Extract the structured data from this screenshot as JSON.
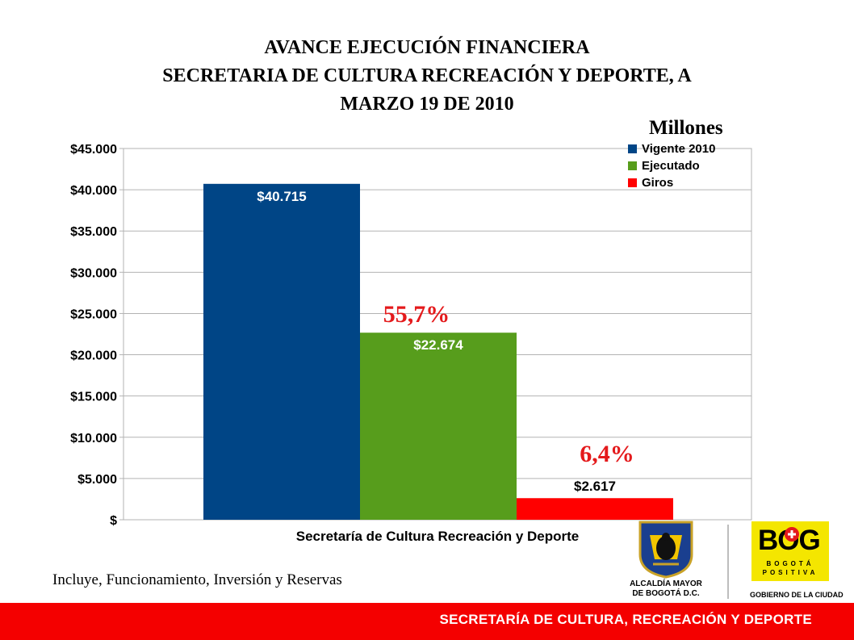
{
  "title": {
    "line1": "AVANCE EJECUCIÓN FINANCIERA",
    "line2": "SECRETARIA DE CULTURA RECREACIÓN Y DEPORTE,  A",
    "line3": "MARZO 19 DE 2010"
  },
  "unit_label": "Millones",
  "footnote": "Incluye, Funcionamiento, Inversión y Reservas",
  "footer": {
    "text": "SECRETARÍA DE CULTURA, RECREACIÓN Y DEPORTE",
    "color": "#f40000"
  },
  "logos": {
    "alcaldia_line1": "ALCALDÍA MAYOR",
    "alcaldia_line2": "DE BOGOTÁ D.C.",
    "bog_mark": "BOG",
    "bog_sub1": "BOGOTÁ",
    "bog_sub2": "POSITIVA",
    "bog_caption": "GOBIERNO DE LA CIUDAD"
  },
  "chart_data": {
    "type": "bar",
    "title": "",
    "xlabel": "",
    "ylabel": "",
    "categories": [
      "Secretaría de Cultura Recreación y Deporte"
    ],
    "series": [
      {
        "name": "Vigente 2010",
        "values": [
          40715
        ],
        "label": "$40.715",
        "color": "#004586",
        "label_color": "#ffffff"
      },
      {
        "name": "Ejecutado",
        "values": [
          22674
        ],
        "label": "$22.674",
        "color": "#579d1c",
        "label_color": "#ffffff",
        "annotation": "55,7%"
      },
      {
        "name": "Giros",
        "values": [
          2617
        ],
        "label": "$2.617",
        "color": "#ff0000",
        "label_color": "#000000",
        "annotation": "6,4%"
      }
    ],
    "ylim": [
      0,
      45000
    ],
    "yticks": [
      "$",
      "$5.000",
      "$10.000",
      "$15.000",
      "$20.000",
      "$25.000",
      "$30.000",
      "$35.000",
      "$40.000",
      "$45.000"
    ],
    "ytick_values": [
      0,
      5000,
      10000,
      15000,
      20000,
      25000,
      30000,
      35000,
      40000,
      45000
    ],
    "grid": true,
    "legend_position": "top-right",
    "annotation_color": "#e41a1c"
  }
}
